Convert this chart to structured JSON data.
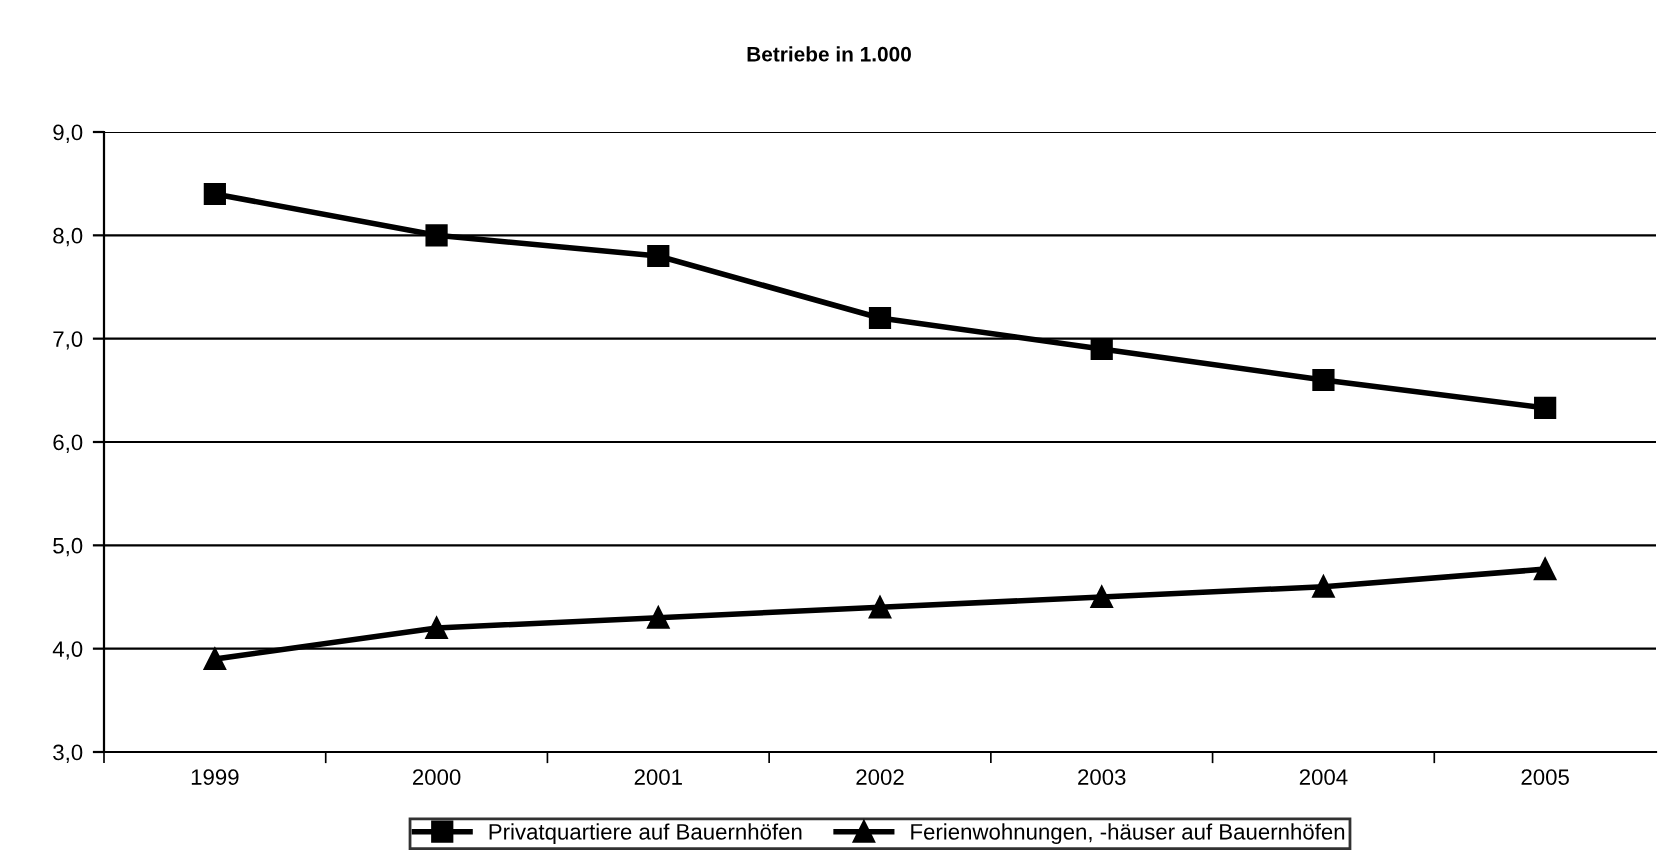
{
  "chart_data": {
    "type": "line",
    "title": "Betriebe in 1.000",
    "categories": [
      "1999",
      "2000",
      "2001",
      "2002",
      "2003",
      "2004",
      "2005"
    ],
    "series": [
      {
        "name": "Privatquartiere auf Bauernhöfen",
        "color": "#000000",
        "marker": "square",
        "values": [
          8.4,
          8.0,
          7.8,
          7.2,
          6.9,
          6.6,
          6.33
        ]
      },
      {
        "name": "Ferienwohnungen, -häuser auf Bauernhöfen",
        "color": "#000000",
        "marker": "triangle",
        "values": [
          3.9,
          4.2,
          4.3,
          4.4,
          4.5,
          4.6,
          4.77
        ]
      }
    ],
    "ylim": [
      3.0,
      9.0
    ],
    "yticks": [
      {
        "value": 3.0,
        "label": "3,0"
      },
      {
        "value": 4.0,
        "label": "4,0"
      },
      {
        "value": 5.0,
        "label": "5,0"
      },
      {
        "value": 6.0,
        "label": "6,0"
      },
      {
        "value": 7.0,
        "label": "7,0"
      },
      {
        "value": 8.0,
        "label": "8,0"
      },
      {
        "value": 9.0,
        "label": "9,0"
      }
    ],
    "grid": "y",
    "legend": "bottom",
    "line_style": "solid"
  }
}
